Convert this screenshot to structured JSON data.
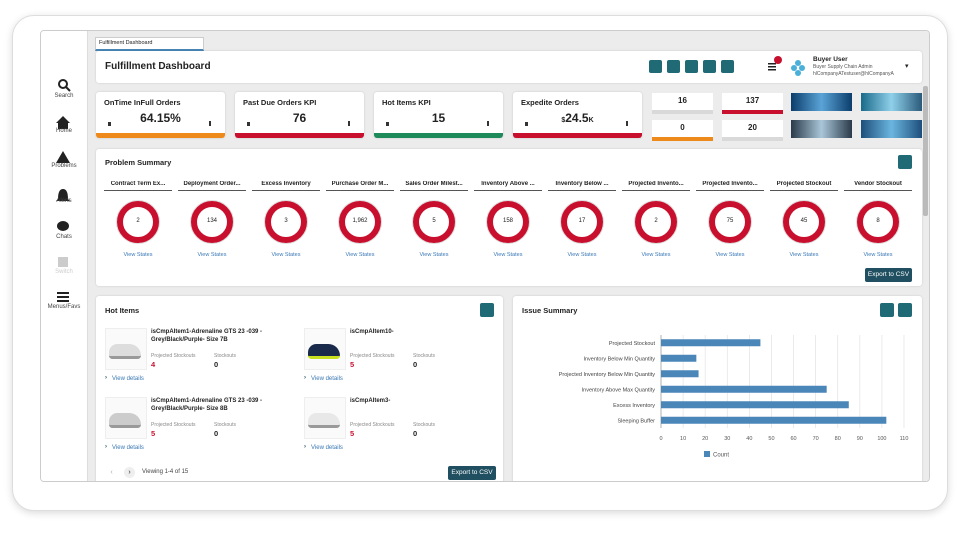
{
  "tab": "Fulfillment Dashboard",
  "sidebar": [
    "Search",
    "Home",
    "Problems",
    "Alerts",
    "Chats",
    "Switch",
    "Menus/Favs"
  ],
  "header": {
    "title": "Fulfillment Dashboard",
    "user_name": "Buyer User",
    "user_role": "Buyer Supply Chain Admin",
    "user_email": "hlCompanyATestuser@hlCompanyA"
  },
  "kpis": [
    {
      "title": "OnTime InFull Orders",
      "value": "64.15%",
      "color": "#ee8a1c"
    },
    {
      "title": "Past Due Orders KPI",
      "value": "76",
      "color": "#c8102e"
    },
    {
      "title": "Hot Items KPI",
      "value": "15",
      "color": "#1e8a5a"
    },
    {
      "title": "Expedite Orders",
      "value_prefix": "$",
      "value": "24.5",
      "value_suffix": "K",
      "color": "#c8102e"
    }
  ],
  "mini_counts": [
    {
      "value": "16",
      "color": "#d9d9d9"
    },
    {
      "value": "137",
      "color": "#c8102e"
    },
    {
      "value": "0",
      "color": "#ee8a1c"
    },
    {
      "value": "20",
      "color": "#d9d9d9"
    }
  ],
  "problem_summary": {
    "title": "Problem Summary",
    "link": "View States",
    "export": "Export to CSV",
    "items": [
      {
        "label": "Contract Term Ex...",
        "count": "2"
      },
      {
        "label": "Deployment Order...",
        "count": "134"
      },
      {
        "label": "Excess Inventory",
        "count": "3"
      },
      {
        "label": "Purchase Order M...",
        "count": "1,962"
      },
      {
        "label": "Sales Order Milest...",
        "count": "5"
      },
      {
        "label": "Inventory Above ...",
        "count": "158"
      },
      {
        "label": "Inventory Below ...",
        "count": "17"
      },
      {
        "label": "Projected Invento...",
        "count": "2"
      },
      {
        "label": "Projected Invento...",
        "count": "75"
      },
      {
        "label": "Projected Stockout",
        "count": "45"
      },
      {
        "label": "Vendor Stockout",
        "count": "8"
      }
    ]
  },
  "hot_items": {
    "title": "Hot Items",
    "projected_label": "Projected Stockouts",
    "stockouts_label": "Stockouts",
    "link": "View details",
    "pagination": "Viewing 1-4 of 15",
    "export": "Export to CSV",
    "items": [
      {
        "name": "isCmpAItem1-Adrenaline GTS 23 -039 - Grey/Black/Purple- Size 7B",
        "projected": "4",
        "stockouts": "0"
      },
      {
        "name": "isCmpAItem10-",
        "projected": "5",
        "stockouts": "0"
      },
      {
        "name": "isCmpAItem1-Adrenaline GTS 23 -039 - Grey/Black/Purple- Size 8B",
        "projected": "5",
        "stockouts": "0"
      },
      {
        "name": "isCmpAItem3-",
        "projected": "5",
        "stockouts": "0"
      }
    ]
  },
  "issue_summary": {
    "title": "Issue Summary",
    "chart": {
      "type": "bar",
      "orientation": "horizontal",
      "categories": [
        "Projected Stockout",
        "Inventory Below Min Quantity",
        "Projected Inventory Below Min Quantity",
        "Inventory Above Max Quantity",
        "Excess Inventory",
        "Sleeping Buffer"
      ],
      "series": [
        {
          "name": "Count",
          "color": "#4a86b8",
          "values": [
            45,
            16,
            17,
            75,
            85,
            102
          ]
        }
      ],
      "xlim": [
        0,
        110
      ],
      "xticks": [
        0,
        10,
        20,
        30,
        40,
        50,
        60,
        70,
        80,
        90,
        100,
        110
      ],
      "grid": true
    }
  }
}
